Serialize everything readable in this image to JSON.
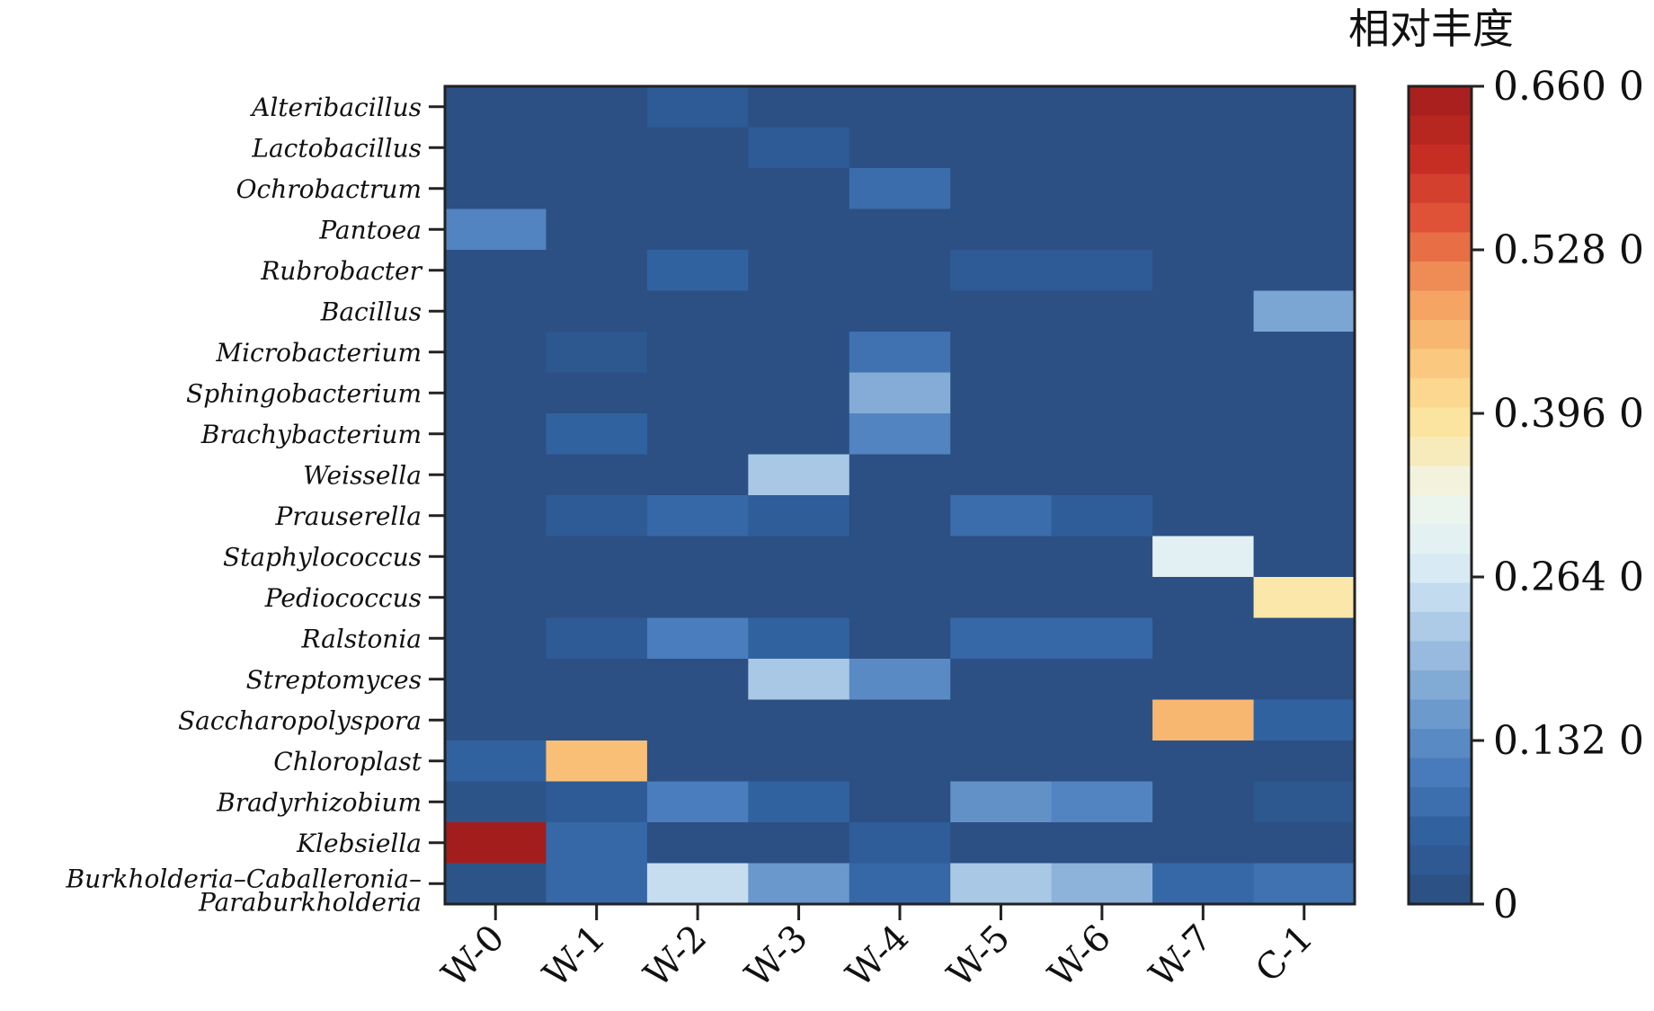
{
  "chart_data": {
    "type": "heatmap",
    "title": "",
    "colorbar_title": "相对丰度",
    "colorbar_ticks": [
      "0.660 0",
      "0.528 0",
      "0.396 0",
      "0.264 0",
      "0.132 0",
      "0"
    ],
    "colorbar_tick_values": [
      0.66,
      0.528,
      0.396,
      0.264,
      0.132,
      0
    ],
    "vmin": 0,
    "vmax": 0.66,
    "columns": [
      "W-0",
      "W-1",
      "W-2",
      "W-3",
      "W-4",
      "W-5",
      "W-6",
      "W-7",
      "C-1"
    ],
    "rows": [
      [
        "Alteribacillus"
      ],
      [
        "Lactobacillus"
      ],
      [
        "Ochrobactrum"
      ],
      [
        "Pantoea"
      ],
      [
        "Rubrobacter"
      ],
      [
        "Bacillus"
      ],
      [
        "Microbacterium"
      ],
      [
        "Sphingobacterium"
      ],
      [
        "Brachybacterium"
      ],
      [
        "Weissella"
      ],
      [
        "Prauserella"
      ],
      [
        "Staphylococcus"
      ],
      [
        "Pediococcus"
      ],
      [
        "Ralstonia"
      ],
      [
        "Streptomyces"
      ],
      [
        "Saccharopolyspora"
      ],
      [
        "Chloroplast"
      ],
      [
        "Bradyrhizobium"
      ],
      [
        "Klebsiella"
      ],
      [
        "Burkholderia–Caballeronia–",
        "Paraburkholderia"
      ]
    ],
    "values": [
      [
        0.01,
        0.01,
        0.04,
        0.01,
        0.01,
        0.01,
        0.01,
        0.01,
        0.01
      ],
      [
        0.01,
        0.01,
        0.01,
        0.04,
        0.01,
        0.01,
        0.01,
        0.01,
        0.01
      ],
      [
        0.01,
        0.01,
        0.01,
        0.01,
        0.08,
        0.01,
        0.01,
        0.01,
        0.01
      ],
      [
        0.12,
        0.01,
        0.01,
        0.01,
        0.01,
        0.01,
        0.01,
        0.01,
        0.01
      ],
      [
        0.01,
        0.01,
        0.06,
        0.01,
        0.01,
        0.04,
        0.04,
        0.01,
        0.01
      ],
      [
        0.01,
        0.01,
        0.01,
        0.01,
        0.01,
        0.01,
        0.01,
        0.01,
        0.17
      ],
      [
        0.01,
        0.03,
        0.01,
        0.01,
        0.09,
        0.01,
        0.01,
        0.01,
        0.01
      ],
      [
        0.01,
        0.01,
        0.01,
        0.01,
        0.18,
        0.01,
        0.01,
        0.01,
        0.01
      ],
      [
        0.01,
        0.06,
        0.01,
        0.01,
        0.12,
        0.01,
        0.01,
        0.01,
        0.01
      ],
      [
        0.01,
        0.01,
        0.01,
        0.22,
        0.01,
        0.01,
        0.01,
        0.01,
        0.01
      ],
      [
        0.01,
        0.04,
        0.07,
        0.05,
        0.01,
        0.08,
        0.05,
        0.01,
        0.01
      ],
      [
        0.01,
        0.01,
        0.01,
        0.01,
        0.01,
        0.01,
        0.01,
        0.29,
        0.01
      ],
      [
        0.01,
        0.01,
        0.01,
        0.01,
        0.01,
        0.01,
        0.01,
        0.01,
        0.38
      ],
      [
        0.01,
        0.04,
        0.11,
        0.06,
        0.01,
        0.07,
        0.07,
        0.01,
        0.01
      ],
      [
        0.01,
        0.01,
        0.01,
        0.22,
        0.13,
        0.01,
        0.01,
        0.01,
        0.01
      ],
      [
        0.01,
        0.01,
        0.01,
        0.01,
        0.01,
        0.01,
        0.01,
        0.46,
        0.06
      ],
      [
        0.06,
        0.45,
        0.01,
        0.01,
        0.01,
        0.01,
        0.01,
        0.01,
        0.01
      ],
      [
        0.02,
        0.04,
        0.11,
        0.06,
        0.01,
        0.14,
        0.12,
        0.01,
        0.03
      ],
      [
        0.66,
        0.07,
        0.01,
        0.01,
        0.05,
        0.01,
        0.01,
        0.01,
        0.01
      ],
      [
        0.02,
        0.07,
        0.25,
        0.15,
        0.07,
        0.22,
        0.19,
        0.07,
        0.09
      ]
    ],
    "colormap": [
      "#2b4d7e",
      "#2f5f9d",
      "#4a7dbd",
      "#76a2d1",
      "#a9c8e5",
      "#dceef6",
      "#f1f5ec",
      "#fbe6a2",
      "#fac77c",
      "#f39a5c",
      "#e2553a",
      "#c42b22",
      "#a31d1d"
    ]
  }
}
